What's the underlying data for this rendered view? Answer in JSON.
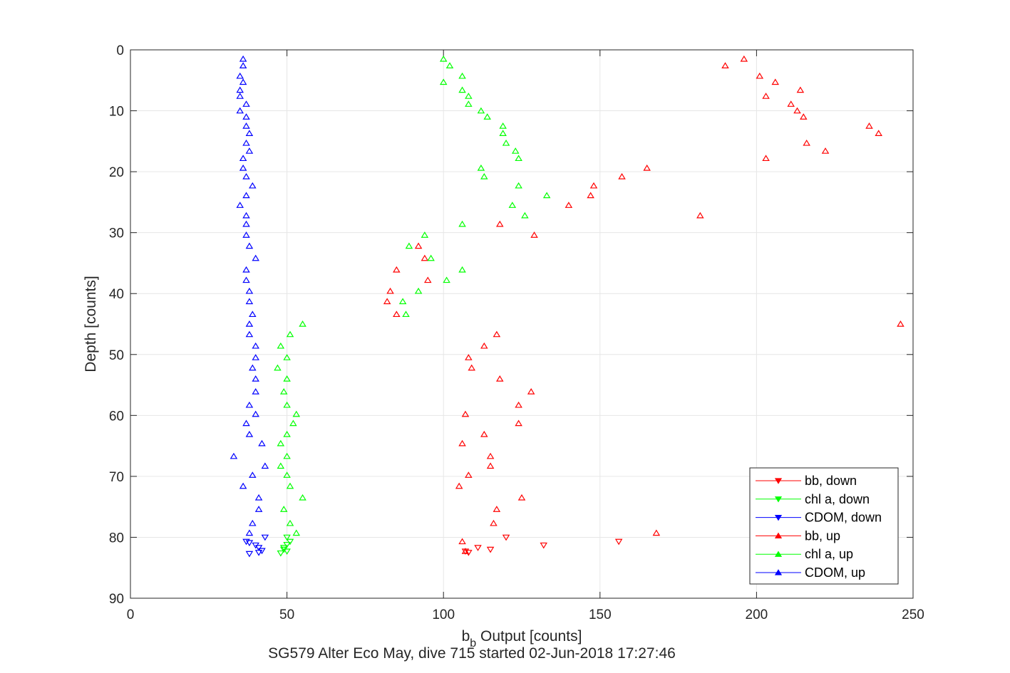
{
  "chart_data": {
    "type": "scatter",
    "title": "SG579 Alter Eco May, dive 715 started 02-Jun-2018 17:27:46",
    "xlabel_main": "b",
    "xlabel_sub": "b",
    "xlabel_rest": " Output [counts]",
    "ylabel": "Depth [counts]",
    "xlim": [
      0,
      250
    ],
    "ylim": [
      0,
      90
    ],
    "y_reversed": true,
    "grid": true,
    "x_ticks": [
      "0",
      "50",
      "100",
      "150",
      "200",
      "250"
    ],
    "y_ticks": [
      "0",
      "10",
      "20",
      "30",
      "40",
      "50",
      "60",
      "70",
      "80",
      "90"
    ],
    "legend_position": "bottom-right",
    "series": [
      {
        "name": "bb, down",
        "color": "#ff0000",
        "marker": "triangle-down",
        "points": [
          [
            120,
            80
          ],
          [
            132,
            81.3
          ],
          [
            156,
            80.7
          ],
          [
            108,
            82.5
          ],
          [
            111,
            81.7
          ],
          [
            115,
            82
          ],
          [
            107,
            82.3
          ]
        ]
      },
      {
        "name": "chl a, down",
        "color": "#00ff00",
        "marker": "triangle-down",
        "points": [
          [
            50,
            80
          ],
          [
            51,
            80.7
          ],
          [
            49,
            81.7
          ],
          [
            50,
            82.3
          ],
          [
            48,
            82.6
          ],
          [
            50,
            81.2
          ],
          [
            49,
            82
          ]
        ]
      },
      {
        "name": "CDOM, down",
        "color": "#0000ff",
        "marker": "triangle-down",
        "points": [
          [
            43,
            80
          ],
          [
            37,
            80.7
          ],
          [
            41,
            81.7
          ],
          [
            42,
            82.2
          ],
          [
            38,
            82.7
          ],
          [
            41,
            82.5
          ],
          [
            40,
            81.3
          ],
          [
            38,
            80.9
          ]
        ]
      },
      {
        "name": "bb, up",
        "color": "#ff0000",
        "marker": "triangle-up",
        "points": [
          [
            196,
            1.5
          ],
          [
            190,
            2.6
          ],
          [
            201,
            4.3
          ],
          [
            206,
            5.3
          ],
          [
            214,
            6.6
          ],
          [
            203,
            7.6
          ],
          [
            211,
            8.9
          ],
          [
            213,
            10
          ],
          [
            215,
            11
          ],
          [
            236,
            12.5
          ],
          [
            239,
            13.7
          ],
          [
            216,
            15.3
          ],
          [
            222,
            16.6
          ],
          [
            203,
            17.8
          ],
          [
            165,
            19.4
          ],
          [
            157,
            20.8
          ],
          [
            148,
            22.3
          ],
          [
            147,
            23.9
          ],
          [
            140,
            25.5
          ],
          [
            182,
            27.2
          ],
          [
            118,
            28.6
          ],
          [
            129,
            30.4
          ],
          [
            92,
            32.2
          ],
          [
            94,
            34.2
          ],
          [
            85,
            36.1
          ],
          [
            95,
            37.8
          ],
          [
            83,
            39.6
          ],
          [
            82,
            41.3
          ],
          [
            85,
            43.4
          ],
          [
            246,
            45
          ],
          [
            117,
            46.7
          ],
          [
            113,
            48.6
          ],
          [
            108,
            50.5
          ],
          [
            109,
            52.2
          ],
          [
            118,
            54
          ],
          [
            128,
            56.1
          ],
          [
            124,
            58.3
          ],
          [
            107,
            59.8
          ],
          [
            124,
            61.3
          ],
          [
            113,
            63.1
          ],
          [
            106,
            64.6
          ],
          [
            115,
            66.7
          ],
          [
            115,
            68.3
          ],
          [
            108,
            69.8
          ],
          [
            105,
            71.6
          ],
          [
            125,
            73.5
          ],
          [
            117,
            75.4
          ],
          [
            116,
            77.7
          ],
          [
            168,
            79.3
          ],
          [
            106,
            80.7
          ],
          [
            107,
            82.3
          ]
        ]
      },
      {
        "name": "chl a, up",
        "color": "#00ff00",
        "marker": "triangle-up",
        "points": [
          [
            100,
            1.5
          ],
          [
            102,
            2.6
          ],
          [
            106,
            4.3
          ],
          [
            100,
            5.3
          ],
          [
            106,
            6.6
          ],
          [
            108,
            7.6
          ],
          [
            108,
            8.9
          ],
          [
            112,
            10
          ],
          [
            114,
            11
          ],
          [
            119,
            12.5
          ],
          [
            119,
            13.7
          ],
          [
            120,
            15.3
          ],
          [
            123,
            16.6
          ],
          [
            124,
            17.8
          ],
          [
            112,
            19.4
          ],
          [
            113,
            20.8
          ],
          [
            124,
            22.3
          ],
          [
            133,
            23.9
          ],
          [
            122,
            25.5
          ],
          [
            126,
            27.2
          ],
          [
            106,
            28.6
          ],
          [
            94,
            30.4
          ],
          [
            89,
            32.2
          ],
          [
            96,
            34.2
          ],
          [
            106,
            36.1
          ],
          [
            101,
            37.8
          ],
          [
            92,
            39.6
          ],
          [
            87,
            41.3
          ],
          [
            88,
            43.4
          ],
          [
            55,
            45
          ],
          [
            51,
            46.7
          ],
          [
            48,
            48.6
          ],
          [
            50,
            50.5
          ],
          [
            47,
            52.2
          ],
          [
            50,
            54
          ],
          [
            49,
            56.1
          ],
          [
            50,
            58.3
          ],
          [
            53,
            59.8
          ],
          [
            52,
            61.3
          ],
          [
            50,
            63.1
          ],
          [
            48,
            64.6
          ],
          [
            50,
            66.7
          ],
          [
            48,
            68.3
          ],
          [
            50,
            69.8
          ],
          [
            51,
            71.6
          ],
          [
            55,
            73.5
          ],
          [
            49,
            75.4
          ],
          [
            51,
            77.7
          ],
          [
            53,
            79.3
          ]
        ]
      },
      {
        "name": "CDOM, up",
        "color": "#0000ff",
        "marker": "triangle-up",
        "points": [
          [
            36,
            1.5
          ],
          [
            36,
            2.6
          ],
          [
            35,
            4.3
          ],
          [
            36,
            5.3
          ],
          [
            35,
            6.6
          ],
          [
            35,
            7.6
          ],
          [
            37,
            8.9
          ],
          [
            35,
            10
          ],
          [
            37,
            11
          ],
          [
            37,
            12.5
          ],
          [
            38,
            13.7
          ],
          [
            37,
            15.3
          ],
          [
            38,
            16.6
          ],
          [
            36,
            17.8
          ],
          [
            36,
            19.4
          ],
          [
            37,
            20.8
          ],
          [
            39,
            22.3
          ],
          [
            37,
            23.9
          ],
          [
            35,
            25.5
          ],
          [
            37,
            27.2
          ],
          [
            37,
            28.6
          ],
          [
            37,
            30.4
          ],
          [
            38,
            32.2
          ],
          [
            40,
            34.2
          ],
          [
            37,
            36.1
          ],
          [
            37,
            37.8
          ],
          [
            38,
            39.6
          ],
          [
            38,
            41.3
          ],
          [
            39,
            43.4
          ],
          [
            38,
            45
          ],
          [
            38,
            46.7
          ],
          [
            40,
            48.6
          ],
          [
            40,
            50.5
          ],
          [
            39,
            52.2
          ],
          [
            40,
            54
          ],
          [
            40,
            56.1
          ],
          [
            38,
            58.3
          ],
          [
            40,
            59.8
          ],
          [
            37,
            61.3
          ],
          [
            38,
            63.1
          ],
          [
            42,
            64.6
          ],
          [
            33,
            66.7
          ],
          [
            43,
            68.3
          ],
          [
            39,
            69.8
          ],
          [
            36,
            71.6
          ],
          [
            41,
            73.5
          ],
          [
            41,
            75.4
          ],
          [
            39,
            77.7
          ],
          [
            38,
            79.3
          ]
        ]
      }
    ]
  }
}
